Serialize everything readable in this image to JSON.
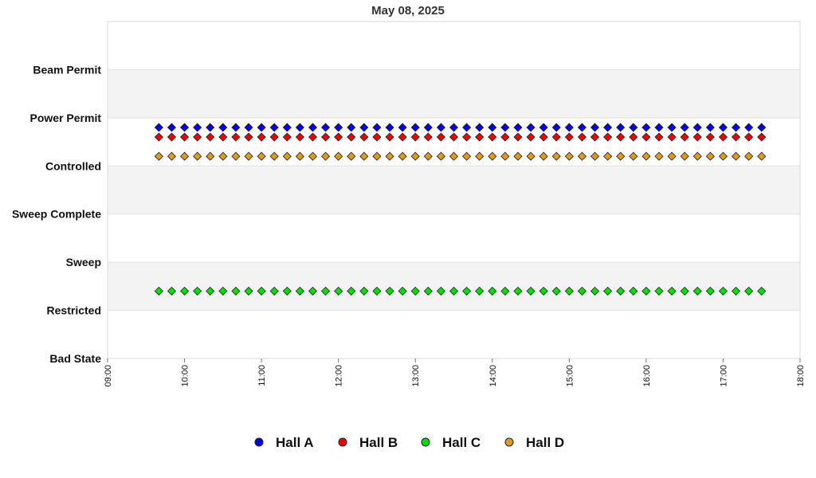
{
  "chart_data": {
    "type": "scatter",
    "title": "May 08, 2025",
    "y_categories": [
      "Bad State",
      "Restricted",
      "Sweep",
      "Sweep Complete",
      "Controlled",
      "Power Permit",
      "Beam Permit"
    ],
    "x_ticks": [
      "09:00",
      "10:00",
      "11:00",
      "12:00",
      "13:00",
      "14:00",
      "15:00",
      "16:00",
      "17:00",
      "18:00"
    ],
    "xlim": [
      "09:00",
      "18:00"
    ],
    "ylim": [
      0,
      7
    ],
    "grid": "alternating horizontal bands",
    "legend_position": "bottom",
    "sample_interval_minutes": 10,
    "x_start": "09:40",
    "x_end": "17:30",
    "series": [
      {
        "name": "Hall A",
        "color": "#0000ee",
        "y_value": 4.8
      },
      {
        "name": "Hall B",
        "color": "#ee0000",
        "y_value": 4.6
      },
      {
        "name": "Hall C",
        "color": "#00dd00",
        "y_value": 1.4
      },
      {
        "name": "Hall D",
        "color": "#dd9922",
        "y_value": 4.2
      }
    ]
  }
}
